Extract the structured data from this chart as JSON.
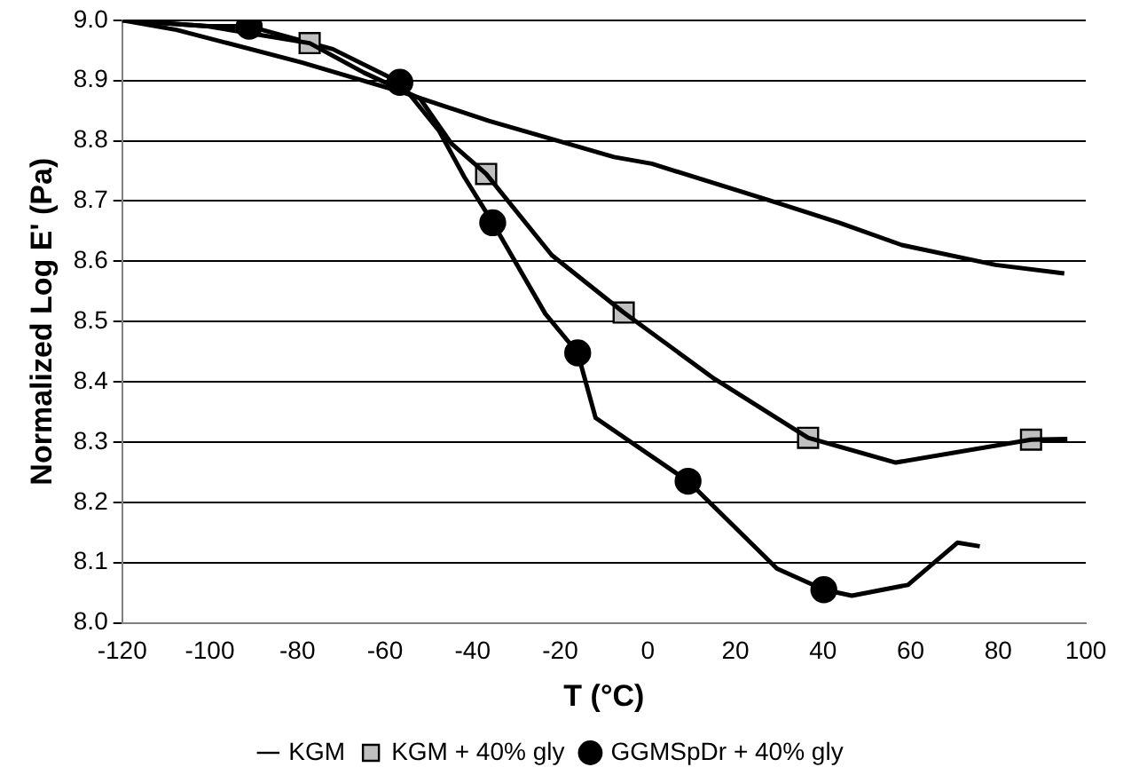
{
  "chart_data": {
    "type": "line",
    "xlabel": "T (°C)",
    "ylabel": "Normalized Log E' (Pa)",
    "xlim": [
      -120,
      100
    ],
    "xticks": [
      -120,
      -100,
      -80,
      -60,
      -40,
      -20,
      0,
      20,
      40,
      60,
      80,
      100
    ],
    "ylim": [
      8.0,
      9.0
    ],
    "yticks": [
      {
        "value": 8.0,
        "label": "8.0"
      },
      8.1,
      8.2,
      8.3,
      8.4,
      8.5,
      8.6,
      8.7,
      8.8,
      8.9,
      {
        "value": 9.0,
        "label": "9.0"
      }
    ],
    "grid": "y",
    "legend": "bottom",
    "series": [
      {
        "name": "KGM",
        "marker": "none",
        "color": "#000000",
        "x": [
          -120,
          -107.6,
          -79,
          -56.2,
          -36.3,
          -20.5,
          -7.7,
          0.9,
          29.5,
          43.7,
          58,
          79.4,
          95.1
        ],
        "values": [
          9.0,
          8.984,
          8.93,
          8.881,
          8.833,
          8.8,
          8.773,
          8.762,
          8.697,
          8.664,
          8.627,
          8.594,
          8.58
        ]
      },
      {
        "marker": "none",
        "color": "#000000",
        "x": [
          -120,
          -100.5,
          -77.2,
          -64.8,
          -52,
          -44.8,
          -36.9,
          -21.9,
          -5.5,
          15.2,
          36.6,
          56.6,
          87.5,
          95.8
        ],
        "values": [
          9.0,
          8.99,
          8.962,
          8.913,
          8.87,
          8.795,
          8.745,
          8.61,
          8.515,
          8.405,
          8.307,
          8.266,
          8.304,
          8.305
        ]
      },
      {
        "name": "KGM + 40% gly",
        "type": "scatter",
        "marker": "square",
        "color": "#c0c0c0",
        "x": [
          -77.2,
          -36.9,
          -5.5,
          36.6,
          87.5
        ],
        "values": [
          8.962,
          8.745,
          8.515,
          8.307,
          8.304
        ]
      },
      {
        "marker": "none",
        "color": "#000000",
        "x": [
          -120,
          -100.5,
          -91,
          -71.9,
          -56.6,
          -47.6,
          -41.9,
          -35.4,
          -23.4,
          -16,
          -11.9,
          9.2,
          29.5,
          40.2,
          46.6,
          59.4,
          70.7,
          75.8
        ],
        "values": [
          9.0,
          8.99,
          8.99,
          8.952,
          8.897,
          8.816,
          8.74,
          8.664,
          8.513,
          8.448,
          8.34,
          8.235,
          8.09,
          8.055,
          8.045,
          8.063,
          8.133,
          8.127
        ]
      },
      {
        "name": "GGMSpDr + 40% gly",
        "type": "scatter",
        "marker": "circle",
        "color": "#000000",
        "x": [
          -91,
          -56.6,
          -35.4,
          -16,
          9.2,
          40.2
        ],
        "values": [
          8.99,
          8.897,
          8.664,
          8.448,
          8.235,
          8.055
        ]
      }
    ]
  }
}
